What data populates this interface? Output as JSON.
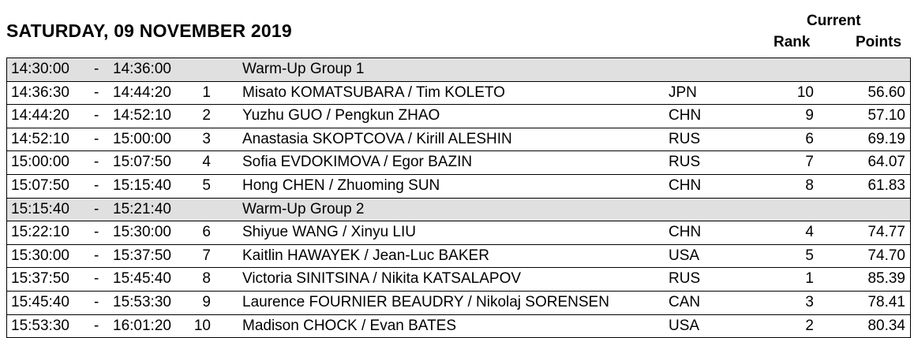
{
  "header": {
    "title": "SATURDAY, 09 NOVEMBER 2019",
    "current_label": "Current",
    "rank_label": "Rank",
    "points_label": "Points"
  },
  "rows": [
    {
      "type": "group",
      "start": "14:30:00",
      "dash": "-",
      "end": "14:36:00",
      "num": "",
      "name": "Warm-Up Group 1",
      "nat": "",
      "rank": "",
      "points": ""
    },
    {
      "type": "entry",
      "start": "14:36:30",
      "dash": "-",
      "end": "14:44:20",
      "num": "1",
      "name": "Misato KOMATSUBARA / Tim KOLETO",
      "nat": "JPN",
      "rank": "10",
      "points": "56.60"
    },
    {
      "type": "entry",
      "start": "14:44:20",
      "dash": "-",
      "end": "14:52:10",
      "num": "2",
      "name": "Yuzhu GUO / Pengkun ZHAO",
      "nat": "CHN",
      "rank": "9",
      "points": "57.10"
    },
    {
      "type": "entry",
      "start": "14:52:10",
      "dash": "-",
      "end": "15:00:00",
      "num": "3",
      "name": "Anastasia SKOPTCOVA / Kirill ALESHIN",
      "nat": "RUS",
      "rank": "6",
      "points": "69.19"
    },
    {
      "type": "entry",
      "start": "15:00:00",
      "dash": "-",
      "end": "15:07:50",
      "num": "4",
      "name": "Sofia EVDOKIMOVA / Egor BAZIN",
      "nat": "RUS",
      "rank": "7",
      "points": "64.07"
    },
    {
      "type": "entry",
      "start": "15:07:50",
      "dash": "-",
      "end": "15:15:40",
      "num": "5",
      "name": "Hong CHEN / Zhuoming SUN",
      "nat": "CHN",
      "rank": "8",
      "points": "61.83"
    },
    {
      "type": "group",
      "start": "15:15:40",
      "dash": "-",
      "end": "15:21:40",
      "num": "",
      "name": "Warm-Up Group 2",
      "nat": "",
      "rank": "",
      "points": ""
    },
    {
      "type": "entry",
      "start": "15:22:10",
      "dash": "-",
      "end": "15:30:00",
      "num": "6",
      "name": "Shiyue WANG / Xinyu LIU",
      "nat": "CHN",
      "rank": "4",
      "points": "74.77"
    },
    {
      "type": "entry",
      "start": "15:30:00",
      "dash": "-",
      "end": "15:37:50",
      "num": "7",
      "name": "Kaitlin HAWAYEK / Jean-Luc BAKER",
      "nat": "USA",
      "rank": "5",
      "points": "74.70"
    },
    {
      "type": "entry",
      "start": "15:37:50",
      "dash": "-",
      "end": "15:45:40",
      "num": "8",
      "name": "Victoria SINITSINA / Nikita KATSALAPOV",
      "nat": "RUS",
      "rank": "1",
      "points": "85.39"
    },
    {
      "type": "entry",
      "start": "15:45:40",
      "dash": "-",
      "end": "15:53:30",
      "num": "9",
      "name": "Laurence FOURNIER BEAUDRY / Nikolaj SORENSEN",
      "nat": "CAN",
      "rank": "3",
      "points": "78.41"
    },
    {
      "type": "entry",
      "start": "15:53:30",
      "dash": "-",
      "end": "16:01:20",
      "num": "10",
      "name": "Madison CHOCK / Evan BATES",
      "nat": "USA",
      "rank": "2",
      "points": "80.34"
    }
  ]
}
